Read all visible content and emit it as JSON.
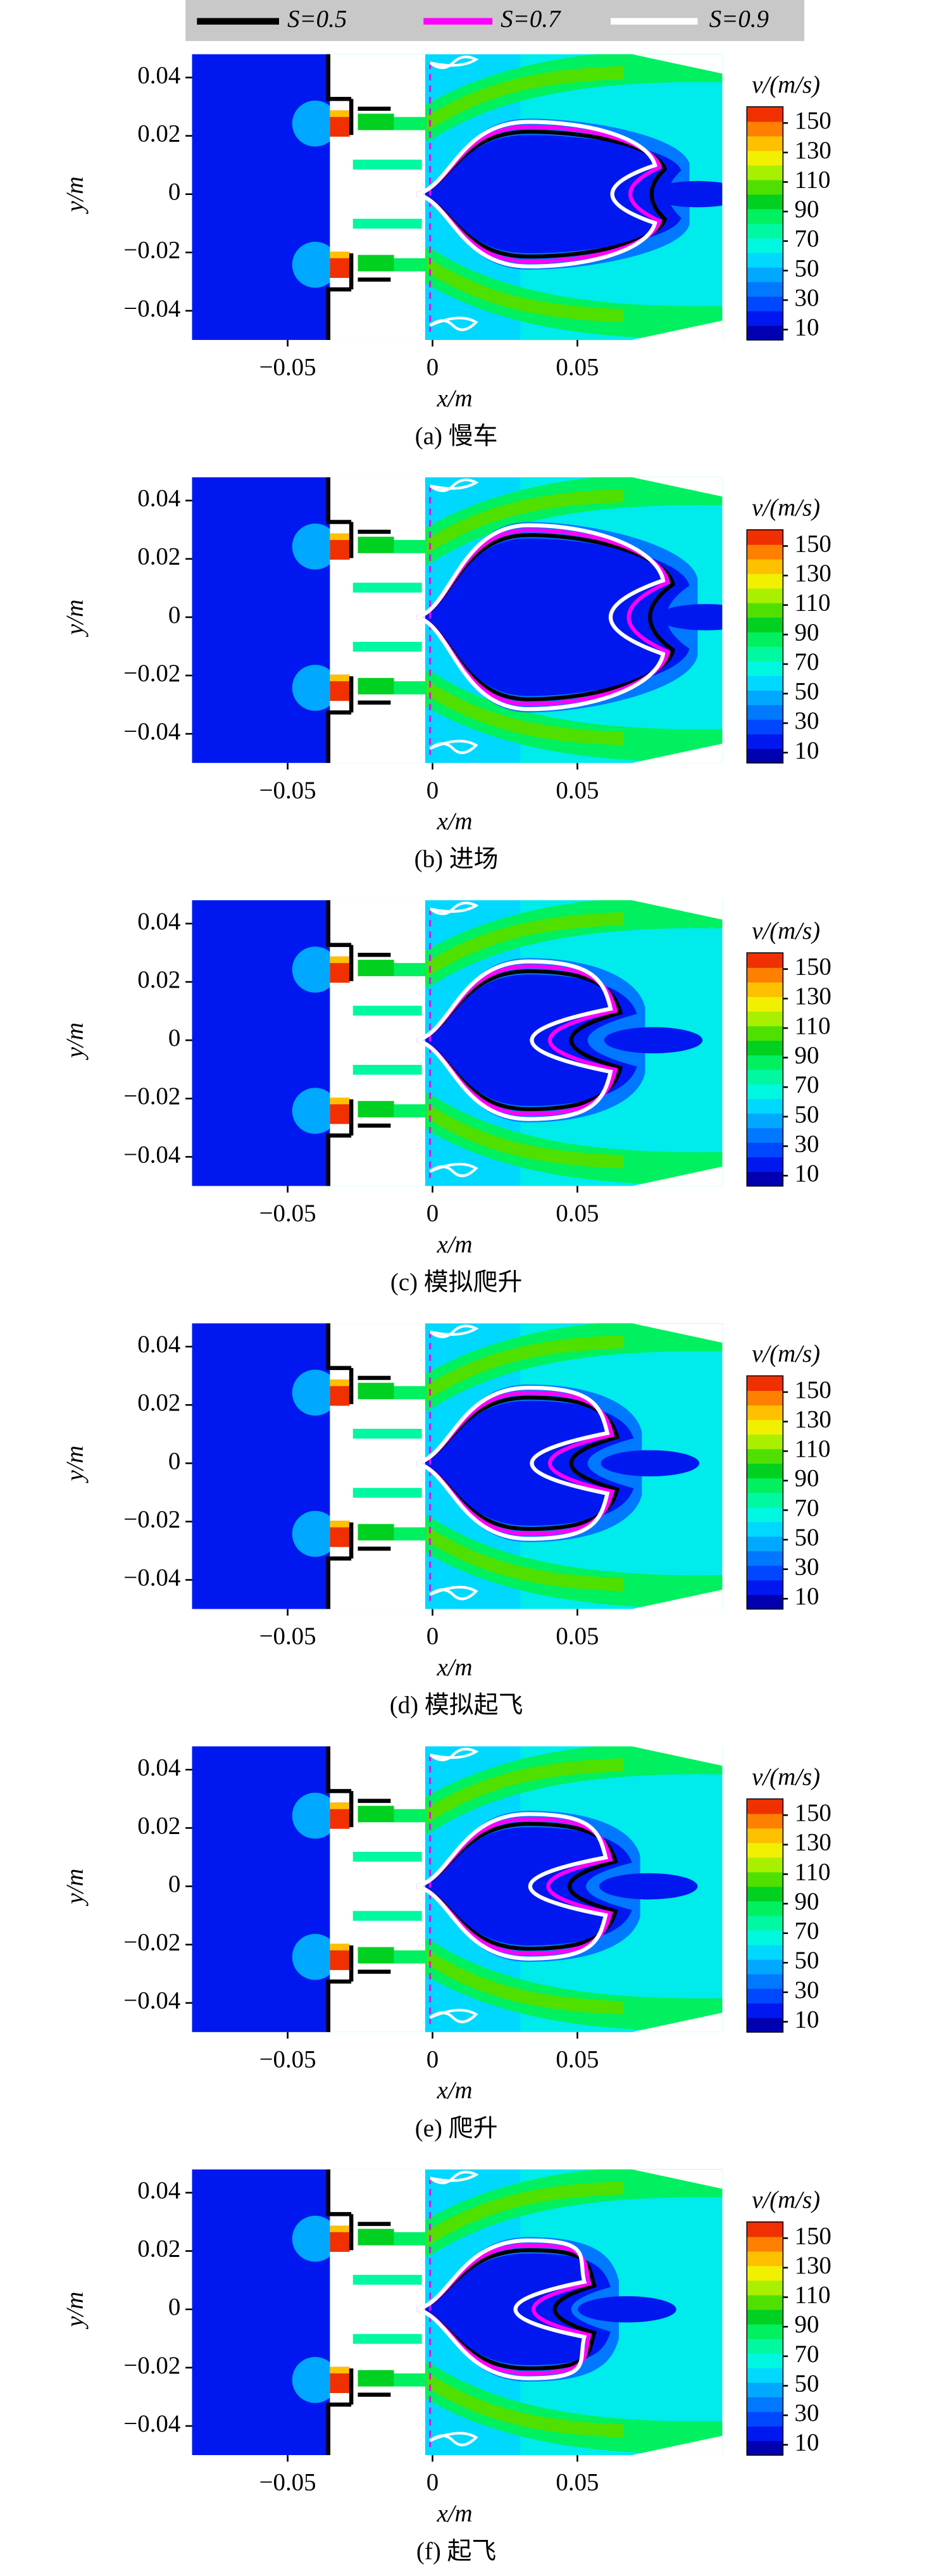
{
  "legend": {
    "series": [
      {
        "name": "S=0.5",
        "color": "#000000"
      },
      {
        "name": "S=0.7",
        "color": "#ff00ff"
      },
      {
        "name": "S=0.9",
        "color": "#ffffff"
      }
    ]
  },
  "chart_data": [
    {
      "type": "contour",
      "caption": "(a) 慢车",
      "xlabel": "x/m",
      "ylabel": "y/m",
      "colorbar_label": "v/(m/s)",
      "xlim": [
        -0.083,
        0.1
      ],
      "xticks": [
        {
          "value": -0.05,
          "label": "−0.05"
        },
        0,
        0.05
      ],
      "ylim": [
        -0.05,
        0.048
      ],
      "yticks": [
        {
          "value": -0.04,
          "label": "−0.04"
        },
        {
          "value": -0.02,
          "label": "−0.02"
        },
        0,
        0.02,
        0.04
      ],
      "clim": [
        3,
        161
      ],
      "cticks": [
        10,
        30,
        50,
        70,
        90,
        110,
        130,
        150
      ],
      "colormap": [
        "#0000b0",
        "#0018f0",
        "#0048ff",
        "#0078ff",
        "#00a8ff",
        "#00d8ff",
        "#00f8e0",
        "#00f8a0",
        "#00f060",
        "#00d020",
        "#50e000",
        "#a8f000",
        "#f0f000",
        "#ffc000",
        "#ff8000",
        "#f03000"
      ]
    },
    {
      "type": "contour",
      "caption": "(b) 进场",
      "xlabel": "x/m",
      "ylabel": "y/m",
      "colorbar_label": "v/(m/s)",
      "xlim": [
        -0.083,
        0.1
      ],
      "xticks": [
        {
          "value": -0.05,
          "label": "−0.05"
        },
        0,
        0.05
      ],
      "ylim": [
        -0.05,
        0.048
      ],
      "yticks": [
        {
          "value": -0.04,
          "label": "−0.04"
        },
        {
          "value": -0.02,
          "label": "−0.02"
        },
        0,
        0.02,
        0.04
      ],
      "clim": [
        3,
        161
      ],
      "cticks": [
        10,
        30,
        50,
        70,
        90,
        110,
        130,
        150
      ],
      "colormap": [
        "#0000b0",
        "#0018f0",
        "#0048ff",
        "#0078ff",
        "#00a8ff",
        "#00d8ff",
        "#00f8e0",
        "#00f8a0",
        "#00f060",
        "#00d020",
        "#50e000",
        "#a8f000",
        "#f0f000",
        "#ffc000",
        "#ff8000",
        "#f03000"
      ]
    },
    {
      "type": "contour",
      "caption": "(c) 模拟爬升",
      "xlabel": "x/m",
      "ylabel": "y/m",
      "colorbar_label": "v/(m/s)",
      "xlim": [
        -0.083,
        0.1
      ],
      "xticks": [
        {
          "value": -0.05,
          "label": "−0.05"
        },
        0,
        0.05
      ],
      "ylim": [
        -0.05,
        0.048
      ],
      "yticks": [
        {
          "value": -0.04,
          "label": "−0.04"
        },
        {
          "value": -0.02,
          "label": "−0.02"
        },
        0,
        0.02,
        0.04
      ],
      "clim": [
        3,
        161
      ],
      "cticks": [
        10,
        30,
        50,
        70,
        90,
        110,
        130,
        150
      ],
      "colormap": [
        "#0000b0",
        "#0018f0",
        "#0048ff",
        "#0078ff",
        "#00a8ff",
        "#00d8ff",
        "#00f8e0",
        "#00f8a0",
        "#00f060",
        "#00d020",
        "#50e000",
        "#a8f000",
        "#f0f000",
        "#ffc000",
        "#ff8000",
        "#f03000"
      ]
    },
    {
      "type": "contour",
      "caption": "(d) 模拟起飞",
      "xlabel": "x/m",
      "ylabel": "y/m",
      "colorbar_label": "v/(m/s)",
      "xlim": [
        -0.083,
        0.1
      ],
      "xticks": [
        {
          "value": -0.05,
          "label": "−0.05"
        },
        0,
        0.05
      ],
      "ylim": [
        -0.05,
        0.048
      ],
      "yticks": [
        {
          "value": -0.04,
          "label": "−0.04"
        },
        {
          "value": -0.02,
          "label": "−0.02"
        },
        0,
        0.02,
        0.04
      ],
      "clim": [
        3,
        161
      ],
      "cticks": [
        10,
        30,
        50,
        70,
        90,
        110,
        130,
        150
      ],
      "colormap": [
        "#0000b0",
        "#0018f0",
        "#0048ff",
        "#0078ff",
        "#00a8ff",
        "#00d8ff",
        "#00f8e0",
        "#00f8a0",
        "#00f060",
        "#00d020",
        "#50e000",
        "#a8f000",
        "#f0f000",
        "#ffc000",
        "#ff8000",
        "#f03000"
      ]
    },
    {
      "type": "contour",
      "caption": "(e) 爬升",
      "xlabel": "x/m",
      "ylabel": "y/m",
      "colorbar_label": "v/(m/s)",
      "xlim": [
        -0.083,
        0.1
      ],
      "xticks": [
        {
          "value": -0.05,
          "label": "−0.05"
        },
        0,
        0.05
      ],
      "ylim": [
        -0.05,
        0.048
      ],
      "yticks": [
        {
          "value": -0.04,
          "label": "−0.04"
        },
        {
          "value": -0.02,
          "label": "−0.02"
        },
        0,
        0.02,
        0.04
      ],
      "clim": [
        3,
        161
      ],
      "cticks": [
        10,
        30,
        50,
        70,
        90,
        110,
        130,
        150
      ],
      "colormap": [
        "#0000b0",
        "#0018f0",
        "#0048ff",
        "#0078ff",
        "#00a8ff",
        "#00d8ff",
        "#00f8e0",
        "#00f8a0",
        "#00f060",
        "#00d020",
        "#50e000",
        "#a8f000",
        "#f0f000",
        "#ffc000",
        "#ff8000",
        "#f03000"
      ]
    },
    {
      "type": "contour",
      "caption": "(f) 起飞",
      "xlabel": "x/m",
      "ylabel": "y/m",
      "colorbar_label": "v/(m/s)",
      "xlim": [
        -0.083,
        0.1
      ],
      "xticks": [
        {
          "value": -0.05,
          "label": "−0.05"
        },
        0,
        0.05
      ],
      "ylim": [
        -0.05,
        0.048
      ],
      "yticks": [
        {
          "value": -0.04,
          "label": "−0.04"
        },
        {
          "value": -0.02,
          "label": "−0.02"
        },
        0,
        0.02,
        0.04
      ],
      "clim": [
        3,
        161
      ],
      "cticks": [
        10,
        30,
        50,
        70,
        90,
        110,
        130,
        150
      ],
      "colormap": [
        "#0000b0",
        "#0018f0",
        "#0048ff",
        "#0078ff",
        "#00a8ff",
        "#00d8ff",
        "#00f8e0",
        "#00f8a0",
        "#00f060",
        "#00d020",
        "#50e000",
        "#a8f000",
        "#f0f000",
        "#ffc000",
        "#ff8000",
        "#f03000"
      ]
    }
  ]
}
